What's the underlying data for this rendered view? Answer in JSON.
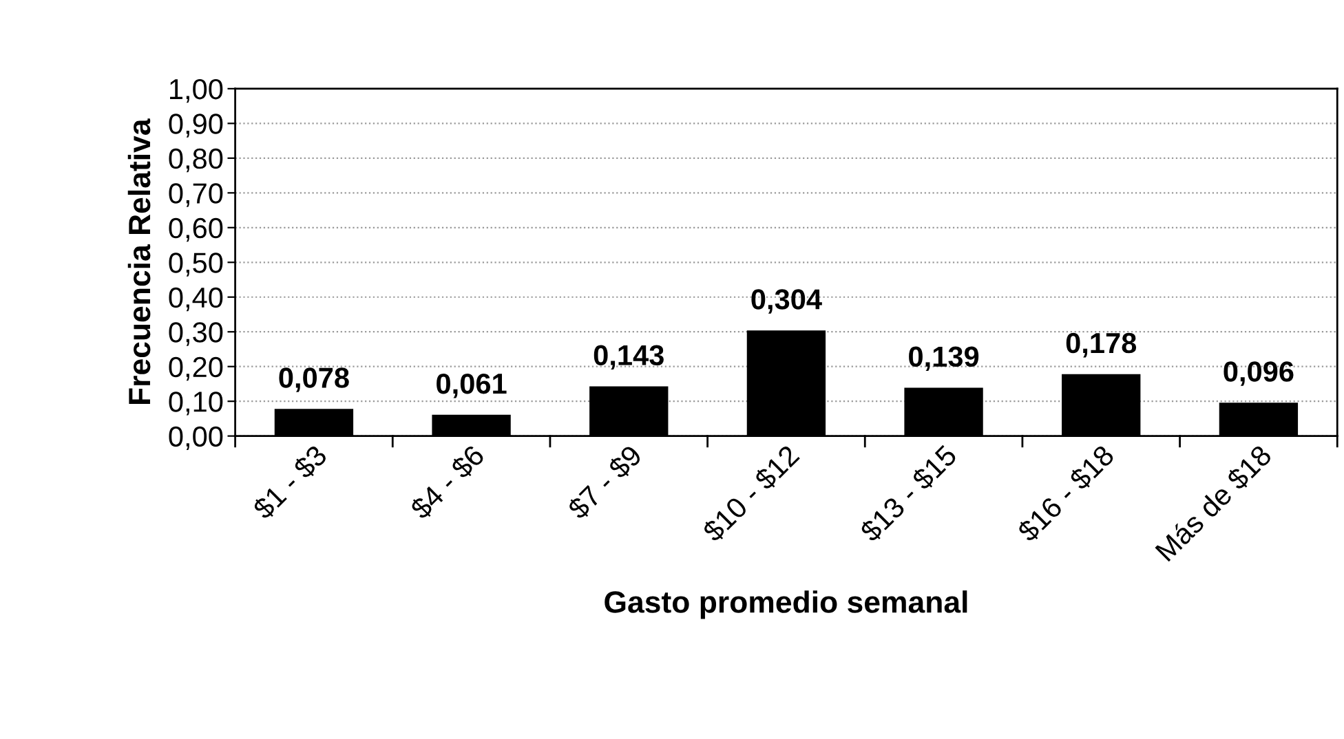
{
  "chart_data": {
    "type": "bar",
    "xlabel": "Gasto promedio semanal",
    "ylabel": "Frecuencia Relativa",
    "categories": [
      "$1 - $3",
      "$4 - $6",
      "$7 - $9",
      "$10 - $12",
      "$13 - $15",
      "$16 - $18",
      "Más de $18"
    ],
    "values": [
      0.078,
      0.061,
      0.143,
      0.304,
      0.139,
      0.178,
      0.096
    ],
    "value_labels": [
      "0,078",
      "0,061",
      "0,143",
      "0,304",
      "0,139",
      "0,178",
      "0,096"
    ],
    "color": "#000000",
    "ylim": [
      0,
      1
    ],
    "yticks": [
      {
        "value": 0,
        "label": "0,00"
      },
      {
        "value": 0.1,
        "label": "0,10"
      },
      {
        "value": 0.2,
        "label": "0,20"
      },
      {
        "value": 0.3,
        "label": "0,30"
      },
      {
        "value": 0.4,
        "label": "0,40"
      },
      {
        "value": 0.5,
        "label": "0,50"
      },
      {
        "value": 0.6,
        "label": "0,60"
      },
      {
        "value": 0.7,
        "label": "0,70"
      },
      {
        "value": 0.8,
        "label": "0,80"
      },
      {
        "value": 0.9,
        "label": "0,90"
      },
      {
        "value": 1,
        "label": "1,00"
      }
    ],
    "grid": "y"
  }
}
